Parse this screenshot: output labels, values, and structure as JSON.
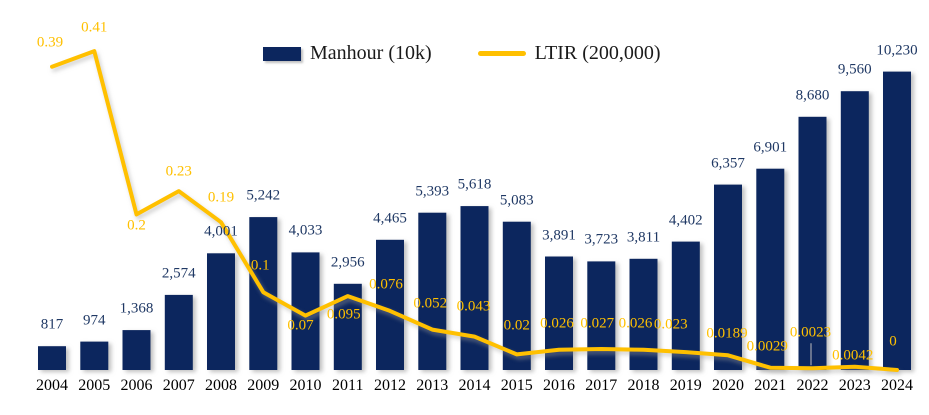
{
  "legend": {
    "items": [
      {
        "label": "Manhour (10k)",
        "swatch": "bar"
      },
      {
        "label": "LTIR (200,000)",
        "swatch": "line"
      }
    ]
  },
  "colors": {
    "bar_fill": "#0c265e",
    "bar_label": "#1f3864",
    "line": "#ffc000",
    "line_label": "#ffc000",
    "axis_label": "#000000",
    "leader_line": "#bfbfbf",
    "legend_text": "#1a1a1a",
    "background": "#ffffff"
  },
  "chart_data": {
    "type": "combo-bar-line",
    "title": "",
    "categories": [
      "2004",
      "2005",
      "2006",
      "2007",
      "2008",
      "2009",
      "2010",
      "2011",
      "2012",
      "2013",
      "2014",
      "2015",
      "2016",
      "2017",
      "2018",
      "2019",
      "2020",
      "2021",
      "2022",
      "2023",
      "2024"
    ],
    "series": [
      {
        "name": "Manhour (10k)",
        "type": "bar",
        "values": [
          817,
          974,
          1368,
          2574,
          4001,
          5242,
          4033,
          2956,
          4465,
          5393,
          5618,
          5083,
          3891,
          3723,
          3811,
          4402,
          6357,
          6901,
          8680,
          9560,
          10230
        ],
        "labels": [
          "817",
          "974",
          "1,368",
          "2,574",
          "4,001",
          "5,242",
          "4,033",
          "2,956",
          "4,465",
          "5,393",
          "5,618",
          "5,083",
          "3,891",
          "3,723",
          "3,811",
          "4,402",
          "6,357",
          "6,901",
          "8,680",
          "9,560",
          "10,230"
        ]
      },
      {
        "name": "LTIR (200,000)",
        "type": "line",
        "values": [
          0.39,
          0.41,
          0.2,
          0.23,
          0.19,
          0.1,
          0.07,
          0.095,
          0.076,
          0.052,
          0.043,
          0.02,
          0.026,
          0.027,
          0.026,
          0.023,
          0.0189,
          0.0029,
          0.0023,
          0.0042,
          0
        ],
        "labels": [
          "0.39",
          "0.41",
          "0.2",
          "0.23",
          "0.19",
          "0.1",
          "0.07",
          "0.095",
          "0.076",
          "0.052",
          "0.043",
          "0.02",
          "0.026",
          "0.027",
          "0.026",
          "0.023",
          "0.0189",
          "0.0029",
          "0.0023",
          "0.0042",
          "0"
        ]
      }
    ],
    "ylim_bar": [
      0,
      12000
    ],
    "ylim_line": [
      0,
      0.45
    ],
    "grid": false,
    "axes_visible": false,
    "legend_position": "top"
  }
}
